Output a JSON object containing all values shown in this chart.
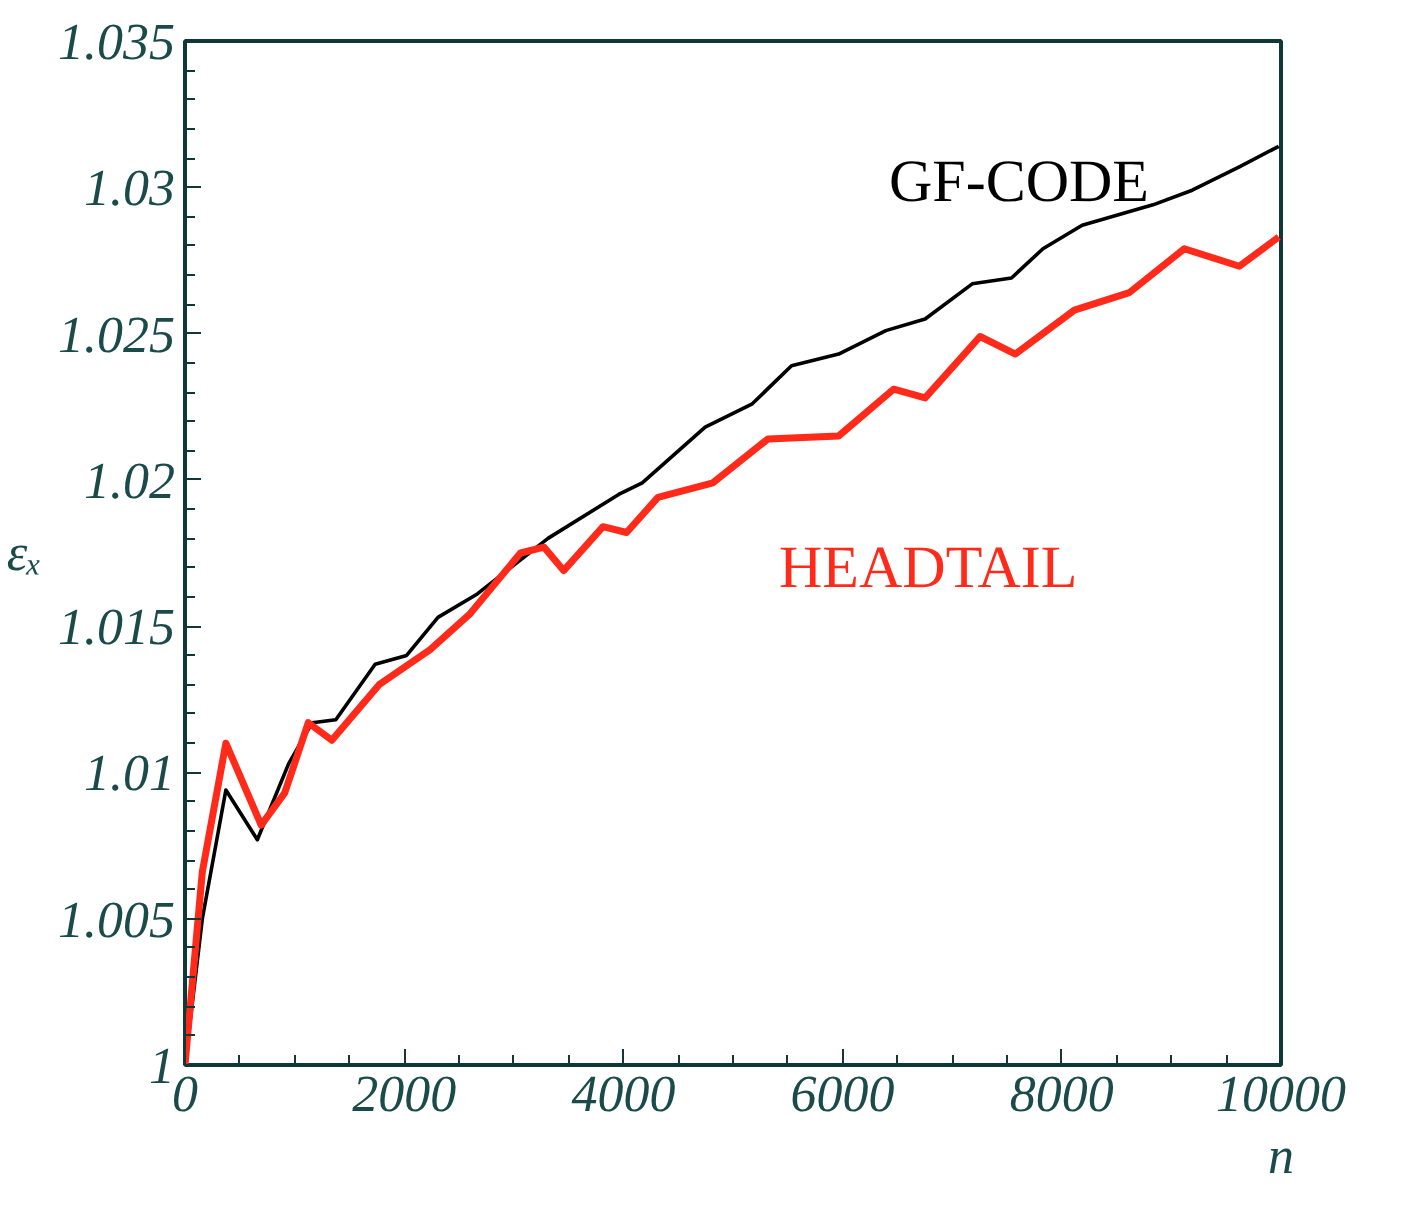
{
  "chart_data": {
    "type": "line",
    "xlabel": "n",
    "ylabel": "εₓ",
    "xlim": [
      0,
      10000
    ],
    "ylim": [
      1,
      1.035
    ],
    "xticks": [
      0,
      2000,
      4000,
      6000,
      8000,
      10000
    ],
    "yticks": [
      1,
      1.005,
      1.01,
      1.015,
      1.02,
      1.025,
      1.03,
      1.035
    ],
    "grid": false,
    "legend": false,
    "marker": "none",
    "line_style": "solid",
    "series": [
      {
        "name": "GF-CODE",
        "color": "#000000",
        "x": [
          0,
          158,
          373,
          660,
          946,
          1161,
          1376,
          1735,
          2022,
          2308,
          2667,
          3312,
          3957,
          4172,
          4746,
          5176,
          5534,
          5964,
          6394,
          6753,
          7183,
          7541,
          7828,
          8186,
          8832,
          9190,
          9620,
          9979
        ],
        "values": [
          1.0,
          1.005,
          1.0094,
          1.0077,
          1.0103,
          1.0117,
          1.0118,
          1.0137,
          1.014,
          1.0153,
          1.0161,
          1.018,
          1.0195,
          1.0199,
          1.0218,
          1.0226,
          1.0239,
          1.0243,
          1.0251,
          1.0255,
          1.0267,
          1.0269,
          1.0279,
          1.0287,
          1.0294,
          1.0299,
          1.0307,
          1.0314
        ]
      },
      {
        "name": "HEADTAIL",
        "color": "#ff2a1a",
        "x": [
          0,
          158,
          373,
          695,
          910,
          1125,
          1340,
          1771,
          2237,
          2595,
          3061,
          3276,
          3455,
          3814,
          4029,
          4315,
          4817,
          5319,
          5964,
          6466,
          6753,
          7254,
          7577,
          8115,
          8616,
          9118,
          9620,
          9979
        ],
        "values": [
          1.0,
          1.0066,
          1.011,
          1.0082,
          1.0093,
          1.0117,
          1.0111,
          1.013,
          1.0142,
          1.0154,
          1.0175,
          1.0177,
          1.0169,
          1.0184,
          1.0182,
          1.0194,
          1.0199,
          1.0214,
          1.0215,
          1.0231,
          1.0228,
          1.0249,
          1.0243,
          1.0258,
          1.0264,
          1.0279,
          1.0273,
          1.0283
        ]
      }
    ]
  }
}
